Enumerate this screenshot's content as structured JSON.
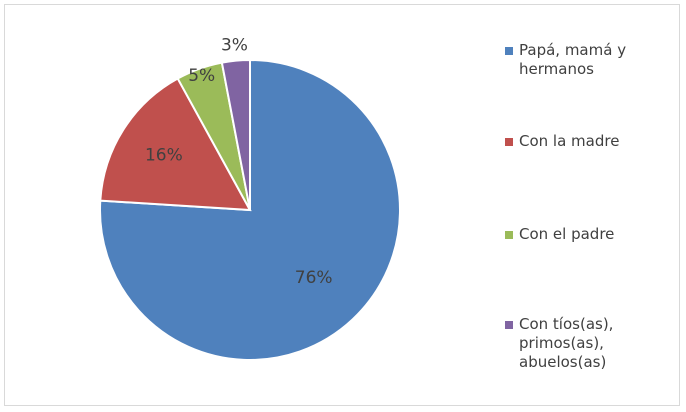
{
  "chart_data": {
    "type": "pie",
    "slices": [
      {
        "name": "Papá, mamá y\nhermanos",
        "value": 76,
        "label": "76%",
        "color": "#4f81bd"
      },
      {
        "name": "Con la madre",
        "value": 16,
        "label": "16%",
        "color": "#c0504d"
      },
      {
        "name": "Con el padre",
        "value": 5,
        "label": "5%",
        "color": "#9bbb59"
      },
      {
        "name": "Con tíos(as),\nprimos(as),\nabuelos(as)",
        "value": 3,
        "label": "3%",
        "color": "#8064a2"
      }
    ],
    "legend_position": "right",
    "start_angle_deg": 0,
    "direction": "clockwise"
  }
}
